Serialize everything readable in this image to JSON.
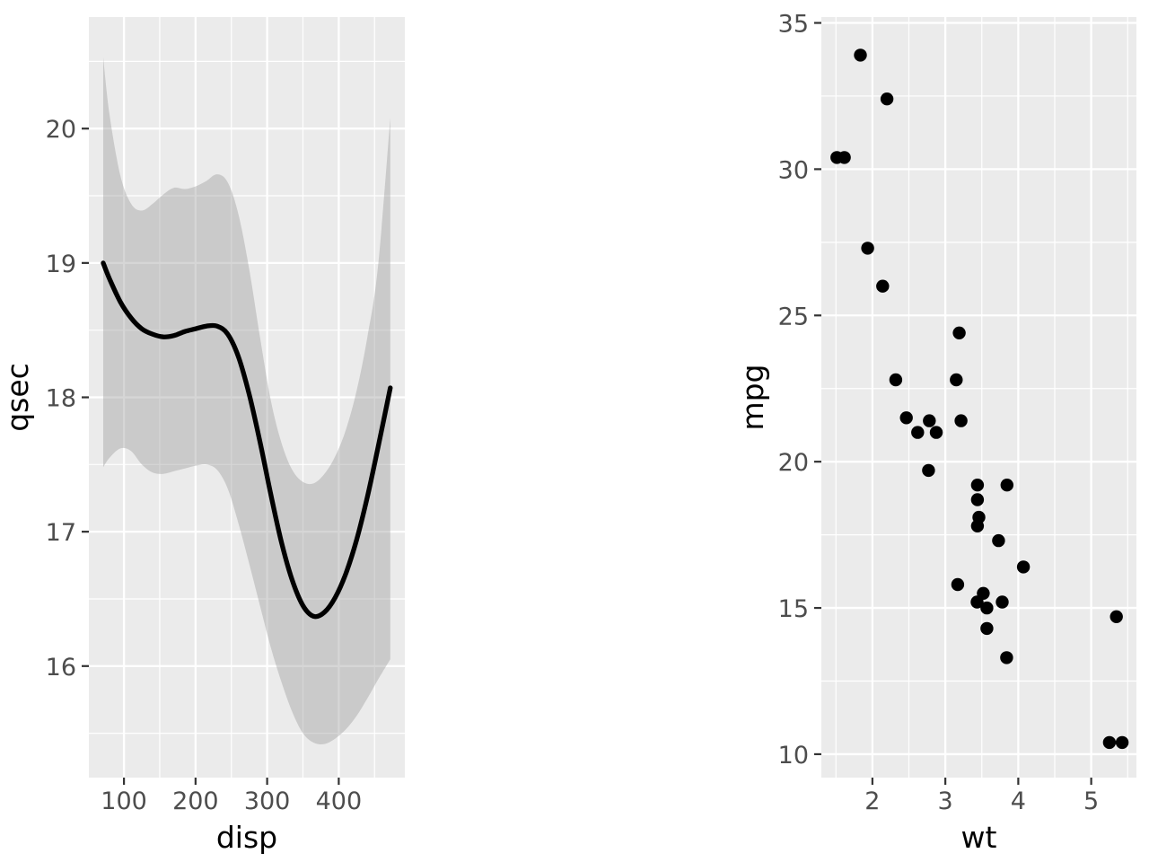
{
  "figure": {
    "background": "#FFFFFF",
    "description": "Two ggplot2 panels: loess smooth of qsec vs disp with confidence ribbon, and scatter plot of mpg vs wt"
  },
  "style": {
    "panel_bg": "#EBEBEB",
    "grid_color": "#FFFFFF",
    "tick_color": "#333333",
    "tick_label_color": "#4D4D4D",
    "axis_title_color": "#000000",
    "point_color": "#000000",
    "line_color": "#000000",
    "ribbon_fill": "#999999",
    "ribbon_opacity": 0.4
  },
  "chart_data": [
    {
      "name": "qsec-vs-disp-smooth",
      "type": "area",
      "title": "",
      "xlabel": "disp",
      "ylabel": "qsec",
      "xlim": [
        51,
        492.3
      ],
      "ylim": [
        15.17,
        20.83
      ],
      "x_breaks": [
        100,
        200,
        300,
        400
      ],
      "x_break_labels": [
        "100",
        "200",
        "300",
        "400"
      ],
      "x_minor_breaks": [
        150,
        250,
        350,
        450
      ],
      "y_breaks": [
        16,
        17,
        18,
        19,
        20
      ],
      "y_break_labels": [
        "16",
        "17",
        "18",
        "19",
        "20"
      ],
      "y_minor_breaks": [
        15.5,
        16.5,
        17.5,
        18.5,
        19.5,
        20.5
      ],
      "grid": true,
      "legend": "none",
      "series": [
        {
          "name": "loess-fit",
          "x": [
            71,
            80,
            95,
            110,
            125,
            140,
            155,
            170,
            185,
            200,
            215,
            230,
            245,
            260,
            275,
            290,
            305,
            320,
            335,
            350,
            365,
            380,
            395,
            410,
            425,
            440,
            455,
            472
          ],
          "y": [
            19.0,
            18.88,
            18.71,
            18.59,
            18.51,
            18.47,
            18.45,
            18.46,
            18.49,
            18.51,
            18.53,
            18.53,
            18.47,
            18.3,
            18.02,
            17.67,
            17.28,
            16.92,
            16.64,
            16.45,
            16.37,
            16.4,
            16.51,
            16.69,
            16.94,
            17.26,
            17.63,
            18.07
          ]
        }
      ],
      "ribbon": {
        "name": "confidence-band",
        "upper": [
          20.53,
          20.1,
          19.65,
          19.44,
          19.39,
          19.44,
          19.51,
          19.56,
          19.55,
          19.57,
          19.61,
          19.66,
          19.6,
          19.36,
          18.95,
          18.45,
          17.98,
          17.66,
          17.46,
          17.37,
          17.36,
          17.43,
          17.56,
          17.76,
          18.05,
          18.45,
          18.98,
          20.08
        ],
        "lower": [
          17.48,
          17.55,
          17.62,
          17.6,
          17.5,
          17.44,
          17.43,
          17.45,
          17.47,
          17.49,
          17.5,
          17.46,
          17.32,
          17.06,
          16.76,
          16.45,
          16.14,
          15.88,
          15.66,
          15.5,
          15.43,
          15.42,
          15.46,
          15.53,
          15.63,
          15.76,
          15.9,
          16.05
        ]
      }
    },
    {
      "name": "mpg-vs-wt-scatter",
      "type": "scatter",
      "title": "",
      "xlabel": "wt",
      "ylabel": "mpg",
      "xlim": [
        1.3,
        5.62
      ],
      "ylim": [
        9.2,
        35.2
      ],
      "x_breaks": [
        2,
        3,
        4,
        5
      ],
      "x_break_labels": [
        "2",
        "3",
        "4",
        "5"
      ],
      "x_minor_breaks": [
        1.5,
        2.5,
        3.5,
        4.5,
        5.5
      ],
      "y_breaks": [
        10,
        15,
        20,
        25,
        30,
        35
      ],
      "y_break_labels": [
        "10",
        "15",
        "20",
        "25",
        "30",
        "35"
      ],
      "y_minor_breaks": [
        12.5,
        17.5,
        22.5,
        27.5,
        32.5
      ],
      "grid": true,
      "legend": "none",
      "points": [
        [
          2.62,
          21.0
        ],
        [
          2.875,
          21.0
        ],
        [
          2.32,
          22.8
        ],
        [
          3.215,
          21.4
        ],
        [
          3.44,
          18.7
        ],
        [
          3.46,
          18.1
        ],
        [
          3.57,
          14.3
        ],
        [
          3.19,
          24.4
        ],
        [
          3.15,
          22.8
        ],
        [
          3.44,
          19.2
        ],
        [
          3.44,
          17.8
        ],
        [
          4.07,
          16.4
        ],
        [
          3.73,
          17.3
        ],
        [
          3.78,
          15.2
        ],
        [
          5.25,
          10.4
        ],
        [
          5.424,
          10.4
        ],
        [
          5.345,
          14.7
        ],
        [
          2.2,
          32.4
        ],
        [
          1.615,
          30.4
        ],
        [
          1.835,
          33.9
        ],
        [
          2.465,
          21.5
        ],
        [
          3.52,
          15.5
        ],
        [
          3.435,
          15.2
        ],
        [
          3.84,
          13.3
        ],
        [
          3.845,
          19.2
        ],
        [
          1.935,
          27.3
        ],
        [
          2.14,
          26.0
        ],
        [
          1.513,
          30.4
        ],
        [
          3.17,
          15.8
        ],
        [
          2.77,
          19.7
        ],
        [
          3.57,
          15.0
        ],
        [
          2.78,
          21.4
        ]
      ]
    }
  ]
}
